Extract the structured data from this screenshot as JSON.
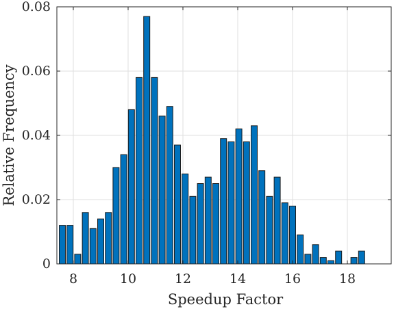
{
  "chart_data": {
    "type": "bar",
    "xlabel": "Speedup Factor",
    "ylabel": "Relative Frequency",
    "xlim": [
      7.4,
      19.6
    ],
    "ylim": [
      0,
      0.08
    ],
    "xticks": [
      8,
      10,
      12,
      14,
      16,
      18
    ],
    "yticks": [
      0,
      0.02,
      0.04,
      0.06,
      0.08
    ],
    "ytick_labels": [
      "0",
      "0.02",
      "0.04",
      "0.06",
      "0.08"
    ],
    "grid": true,
    "bar_color": "#0072BD",
    "bin_width": 0.28,
    "x": [
      7.6,
      7.88,
      8.16,
      8.44,
      8.72,
      9.0,
      9.28,
      9.56,
      9.84,
      10.12,
      10.4,
      10.68,
      10.96,
      11.24,
      11.52,
      11.8,
      12.08,
      12.36,
      12.64,
      12.92,
      13.2,
      13.48,
      13.76,
      14.04,
      14.32,
      14.6,
      14.88,
      15.16,
      15.44,
      15.72,
      16.0,
      16.28,
      16.56,
      16.84,
      17.12,
      17.4,
      17.68,
      17.96,
      18.24,
      18.52,
      18.8,
      19.08,
      19.36
    ],
    "values": [
      0.012,
      0.012,
      0.003,
      0.016,
      0.011,
      0.014,
      0.016,
      0.03,
      0.034,
      0.048,
      0.058,
      0.077,
      0.058,
      0.046,
      0.049,
      0.037,
      0.028,
      0.021,
      0.025,
      0.027,
      0.025,
      0.039,
      0.038,
      0.042,
      0.038,
      0.043,
      0.029,
      0.021,
      0.027,
      0.019,
      0.018,
      0.009,
      0.003,
      0.006,
      0.002,
      0.001,
      0.004,
      0.0,
      0.002,
      0.004,
      0.0,
      0.0,
      0.0
    ]
  }
}
